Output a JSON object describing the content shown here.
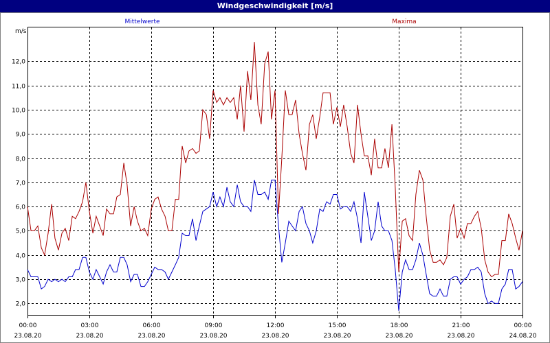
{
  "window_title": "Windgeschwindigkeit [m/s]",
  "chart_data": {
    "type": "line",
    "title": "Windgeschwindigkeit [m/s]",
    "ylabel": "m/s",
    "ylim": [
      1.5,
      13.4
    ],
    "yticks": [
      "2,0",
      "3,0",
      "4,0",
      "5,0",
      "6,0",
      "7,0",
      "8,0",
      "9,0",
      "10,0",
      "11,0",
      "12,0"
    ],
    "xlim_hours": [
      0,
      24
    ],
    "xticks": [
      {
        "time": "00:00",
        "date": "23.08.20"
      },
      {
        "time": "03:00",
        "date": "23.08.20"
      },
      {
        "time": "06:00",
        "date": "23.08.20"
      },
      {
        "time": "09:00",
        "date": "23.08.20"
      },
      {
        "time": "12:00",
        "date": "23.08.20"
      },
      {
        "time": "15:00",
        "date": "23.08.20"
      },
      {
        "time": "18:00",
        "date": "23.08.20"
      },
      {
        "time": "21:00",
        "date": "23.08.20"
      },
      {
        "time": "00:00",
        "date": "24.08.20"
      }
    ],
    "grid": true,
    "series": [
      {
        "name": "Mittelwerte",
        "color": "#0000cc",
        "points": [
          [
            0.0,
            3.4
          ],
          [
            0.17,
            3.1
          ],
          [
            0.33,
            3.1
          ],
          [
            0.5,
            3.1
          ],
          [
            0.67,
            2.6
          ],
          [
            0.83,
            2.7
          ],
          [
            1.0,
            3.0
          ],
          [
            1.17,
            2.9
          ],
          [
            1.33,
            3.0
          ],
          [
            1.5,
            2.9
          ],
          [
            1.67,
            3.0
          ],
          [
            1.83,
            2.9
          ],
          [
            2.0,
            3.1
          ],
          [
            2.17,
            3.1
          ],
          [
            2.33,
            3.4
          ],
          [
            2.5,
            3.4
          ],
          [
            2.67,
            3.9
          ],
          [
            2.83,
            3.9
          ],
          [
            3.0,
            3.3
          ],
          [
            3.17,
            3.0
          ],
          [
            3.33,
            3.4
          ],
          [
            3.5,
            3.1
          ],
          [
            3.67,
            2.8
          ],
          [
            3.83,
            3.3
          ],
          [
            4.0,
            3.6
          ],
          [
            4.17,
            3.3
          ],
          [
            4.33,
            3.3
          ],
          [
            4.5,
            3.9
          ],
          [
            4.67,
            3.9
          ],
          [
            4.83,
            3.6
          ],
          [
            5.0,
            2.9
          ],
          [
            5.17,
            3.2
          ],
          [
            5.33,
            3.2
          ],
          [
            5.5,
            2.7
          ],
          [
            5.67,
            2.7
          ],
          [
            5.83,
            2.9
          ],
          [
            6.0,
            3.2
          ],
          [
            6.17,
            3.5
          ],
          [
            6.33,
            3.4
          ],
          [
            6.5,
            3.4
          ],
          [
            6.67,
            3.3
          ],
          [
            6.83,
            3.0
          ],
          [
            7.0,
            3.3
          ],
          [
            7.17,
            3.6
          ],
          [
            7.33,
            3.9
          ],
          [
            7.5,
            4.9
          ],
          [
            7.67,
            4.8
          ],
          [
            7.83,
            4.8
          ],
          [
            8.0,
            5.5
          ],
          [
            8.17,
            4.6
          ],
          [
            8.33,
            5.2
          ],
          [
            8.5,
            5.8
          ],
          [
            8.67,
            5.9
          ],
          [
            8.83,
            6.0
          ],
          [
            9.0,
            6.6
          ],
          [
            9.17,
            6.0
          ],
          [
            9.33,
            6.4
          ],
          [
            9.5,
            6.0
          ],
          [
            9.67,
            6.8
          ],
          [
            9.83,
            6.2
          ],
          [
            10.0,
            6.0
          ],
          [
            10.17,
            6.9
          ],
          [
            10.33,
            6.2
          ],
          [
            10.5,
            6.0
          ],
          [
            10.67,
            6.0
          ],
          [
            10.83,
            5.8
          ],
          [
            11.0,
            7.1
          ],
          [
            11.17,
            6.5
          ],
          [
            11.33,
            6.5
          ],
          [
            11.5,
            6.6
          ],
          [
            11.67,
            6.3
          ],
          [
            11.83,
            7.1
          ],
          [
            12.0,
            7.1
          ],
          [
            12.17,
            5.2
          ],
          [
            12.33,
            3.7
          ],
          [
            12.5,
            4.5
          ],
          [
            12.67,
            5.4
          ],
          [
            12.83,
            5.2
          ],
          [
            13.0,
            5.0
          ],
          [
            13.17,
            5.8
          ],
          [
            13.33,
            6.0
          ],
          [
            13.5,
            5.3
          ],
          [
            13.67,
            5.0
          ],
          [
            13.83,
            4.5
          ],
          [
            14.0,
            5.0
          ],
          [
            14.17,
            5.9
          ],
          [
            14.33,
            5.8
          ],
          [
            14.5,
            6.2
          ],
          [
            14.67,
            6.1
          ],
          [
            14.83,
            6.5
          ],
          [
            15.0,
            6.5
          ],
          [
            15.17,
            5.9
          ],
          [
            15.33,
            6.0
          ],
          [
            15.5,
            6.0
          ],
          [
            15.67,
            5.8
          ],
          [
            15.83,
            6.2
          ],
          [
            16.0,
            5.5
          ],
          [
            16.17,
            4.5
          ],
          [
            16.33,
            6.6
          ],
          [
            16.5,
            5.6
          ],
          [
            16.67,
            4.6
          ],
          [
            16.83,
            5.0
          ],
          [
            17.0,
            6.2
          ],
          [
            17.17,
            5.2
          ],
          [
            17.33,
            5.0
          ],
          [
            17.5,
            5.0
          ],
          [
            17.67,
            4.6
          ],
          [
            17.83,
            3.4
          ],
          [
            18.0,
            1.7
          ],
          [
            18.17,
            3.3
          ],
          [
            18.33,
            3.8
          ],
          [
            18.5,
            3.4
          ],
          [
            18.67,
            3.4
          ],
          [
            18.83,
            3.8
          ],
          [
            19.0,
            4.5
          ],
          [
            19.17,
            4.0
          ],
          [
            19.33,
            3.2
          ],
          [
            19.5,
            2.4
          ],
          [
            19.67,
            2.3
          ],
          [
            19.83,
            2.3
          ],
          [
            20.0,
            2.6
          ],
          [
            20.17,
            2.3
          ],
          [
            20.33,
            2.3
          ],
          [
            20.5,
            3.0
          ],
          [
            20.67,
            3.1
          ],
          [
            20.83,
            3.1
          ],
          [
            21.0,
            2.8
          ],
          [
            21.17,
            3.0
          ],
          [
            21.33,
            3.1
          ],
          [
            21.5,
            3.4
          ],
          [
            21.67,
            3.4
          ],
          [
            21.83,
            3.5
          ],
          [
            22.0,
            3.3
          ],
          [
            22.17,
            2.4
          ],
          [
            22.33,
            2.0
          ],
          [
            22.5,
            2.1
          ],
          [
            22.67,
            2.0
          ],
          [
            22.83,
            2.0
          ],
          [
            23.0,
            2.6
          ],
          [
            23.17,
            2.8
          ],
          [
            23.33,
            3.4
          ],
          [
            23.5,
            3.4
          ],
          [
            23.67,
            2.6
          ],
          [
            23.83,
            2.7
          ],
          [
            24.0,
            2.9
          ]
        ]
      },
      {
        "name": "Maxima",
        "color": "#aa0000",
        "points": [
          [
            0.0,
            6.0
          ],
          [
            0.17,
            5.0
          ],
          [
            0.33,
            5.0
          ],
          [
            0.5,
            5.2
          ],
          [
            0.67,
            4.3
          ],
          [
            0.83,
            4.0
          ],
          [
            1.0,
            4.9
          ],
          [
            1.17,
            6.1
          ],
          [
            1.33,
            4.7
          ],
          [
            1.5,
            4.2
          ],
          [
            1.67,
            4.9
          ],
          [
            1.83,
            5.1
          ],
          [
            2.0,
            4.6
          ],
          [
            2.17,
            5.6
          ],
          [
            2.33,
            5.5
          ],
          [
            2.5,
            5.8
          ],
          [
            2.67,
            6.2
          ],
          [
            2.83,
            7.0
          ],
          [
            3.0,
            5.8
          ],
          [
            3.17,
            4.9
          ],
          [
            3.33,
            5.6
          ],
          [
            3.5,
            5.2
          ],
          [
            3.67,
            4.8
          ],
          [
            3.83,
            5.9
          ],
          [
            4.0,
            5.7
          ],
          [
            4.17,
            5.7
          ],
          [
            4.33,
            6.4
          ],
          [
            4.5,
            6.5
          ],
          [
            4.67,
            7.8
          ],
          [
            4.83,
            6.9
          ],
          [
            5.0,
            5.2
          ],
          [
            5.17,
            6.0
          ],
          [
            5.33,
            5.4
          ],
          [
            5.5,
            5.0
          ],
          [
            5.67,
            5.1
          ],
          [
            5.83,
            4.8
          ],
          [
            6.0,
            5.9
          ],
          [
            6.17,
            6.3
          ],
          [
            6.33,
            6.4
          ],
          [
            6.5,
            5.9
          ],
          [
            6.67,
            5.6
          ],
          [
            6.83,
            5.0
          ],
          [
            7.0,
            5.0
          ],
          [
            7.17,
            6.3
          ],
          [
            7.33,
            6.3
          ],
          [
            7.5,
            8.5
          ],
          [
            7.67,
            7.8
          ],
          [
            7.83,
            8.3
          ],
          [
            8.0,
            8.4
          ],
          [
            8.17,
            8.2
          ],
          [
            8.33,
            8.3
          ],
          [
            8.5,
            10.0
          ],
          [
            8.67,
            9.8
          ],
          [
            8.83,
            8.8
          ],
          [
            9.0,
            10.8
          ],
          [
            9.17,
            10.3
          ],
          [
            9.33,
            10.5
          ],
          [
            9.5,
            10.2
          ],
          [
            9.67,
            10.5
          ],
          [
            9.83,
            10.3
          ],
          [
            10.0,
            10.5
          ],
          [
            10.17,
            9.6
          ],
          [
            10.33,
            11.0
          ],
          [
            10.5,
            9.1
          ],
          [
            10.67,
            11.6
          ],
          [
            10.83,
            10.4
          ],
          [
            11.0,
            12.8
          ],
          [
            11.17,
            10.2
          ],
          [
            11.33,
            9.4
          ],
          [
            11.5,
            11.9
          ],
          [
            11.67,
            12.4
          ],
          [
            11.83,
            9.6
          ],
          [
            12.0,
            10.8
          ],
          [
            12.17,
            5.7
          ],
          [
            12.33,
            8.0
          ],
          [
            12.5,
            10.8
          ],
          [
            12.67,
            9.8
          ],
          [
            12.83,
            9.8
          ],
          [
            13.0,
            10.4
          ],
          [
            13.17,
            9.0
          ],
          [
            13.33,
            8.2
          ],
          [
            13.5,
            7.5
          ],
          [
            13.67,
            9.4
          ],
          [
            13.83,
            9.8
          ],
          [
            14.0,
            8.8
          ],
          [
            14.17,
            9.7
          ],
          [
            14.33,
            10.7
          ],
          [
            14.5,
            10.7
          ],
          [
            14.67,
            10.7
          ],
          [
            14.83,
            9.4
          ],
          [
            15.0,
            10.1
          ],
          [
            15.17,
            9.3
          ],
          [
            15.33,
            10.2
          ],
          [
            15.5,
            9.3
          ],
          [
            15.67,
            8.2
          ],
          [
            15.83,
            7.8
          ],
          [
            16.0,
            10.2
          ],
          [
            16.17,
            9.0
          ],
          [
            16.33,
            8.1
          ],
          [
            16.5,
            8.1
          ],
          [
            16.67,
            7.3
          ],
          [
            16.83,
            8.8
          ],
          [
            17.0,
            7.6
          ],
          [
            17.17,
            7.6
          ],
          [
            17.33,
            8.4
          ],
          [
            17.5,
            7.6
          ],
          [
            17.67,
            9.4
          ],
          [
            17.83,
            6.8
          ],
          [
            18.0,
            3.3
          ],
          [
            18.17,
            5.4
          ],
          [
            18.33,
            5.5
          ],
          [
            18.5,
            4.8
          ],
          [
            18.67,
            4.6
          ],
          [
            18.83,
            6.5
          ],
          [
            19.0,
            7.5
          ],
          [
            19.17,
            7.1
          ],
          [
            19.33,
            5.6
          ],
          [
            19.5,
            4.2
          ],
          [
            19.67,
            3.7
          ],
          [
            19.83,
            3.7
          ],
          [
            20.0,
            3.8
          ],
          [
            20.17,
            3.6
          ],
          [
            20.33,
            3.9
          ],
          [
            20.5,
            5.6
          ],
          [
            20.67,
            6.1
          ],
          [
            20.83,
            4.7
          ],
          [
            21.0,
            5.1
          ],
          [
            21.17,
            4.7
          ],
          [
            21.33,
            5.3
          ],
          [
            21.5,
            5.3
          ],
          [
            21.67,
            5.6
          ],
          [
            21.83,
            5.8
          ],
          [
            22.0,
            5.1
          ],
          [
            22.17,
            3.8
          ],
          [
            22.33,
            3.3
          ],
          [
            22.5,
            3.1
          ],
          [
            22.67,
            3.2
          ],
          [
            22.83,
            3.2
          ],
          [
            23.0,
            4.6
          ],
          [
            23.17,
            4.6
          ],
          [
            23.33,
            5.7
          ],
          [
            23.5,
            5.3
          ],
          [
            23.67,
            4.7
          ],
          [
            23.83,
            4.2
          ],
          [
            24.0,
            5.0
          ]
        ]
      }
    ]
  }
}
